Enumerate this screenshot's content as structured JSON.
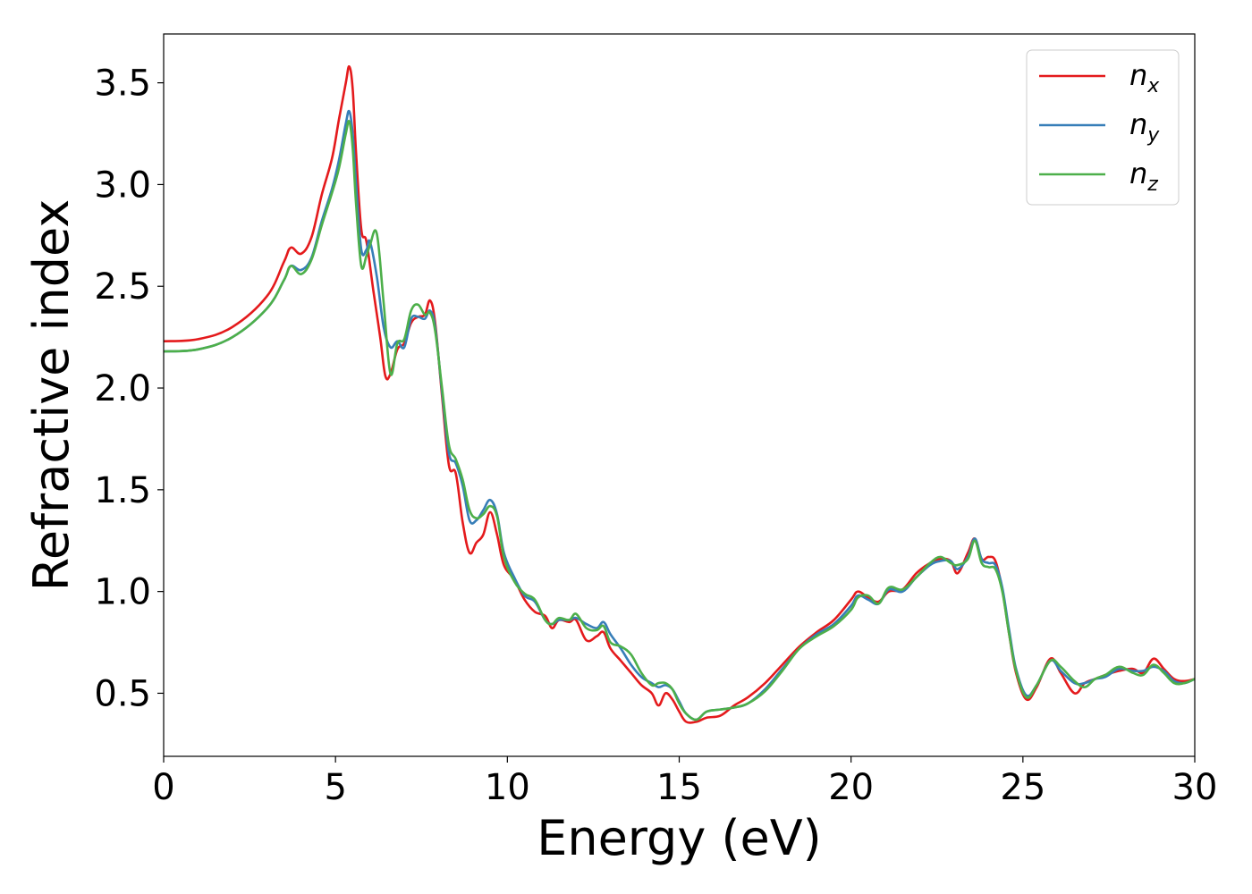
{
  "chart_data": {
    "type": "line",
    "xlabel": "Energy (eV)",
    "ylabel": "Refractive index",
    "xlim": [
      0,
      30
    ],
    "ylim": [
      0.19,
      3.74
    ],
    "xticks": [
      0,
      5,
      10,
      15,
      20,
      25,
      30
    ],
    "yticks": [
      0.5,
      1.0,
      1.5,
      2.0,
      2.5,
      3.0,
      3.5
    ],
    "xtick_labels": [
      "0",
      "5",
      "10",
      "15",
      "20",
      "25",
      "30"
    ],
    "ytick_labels": [
      "0.5",
      "1.0",
      "1.5",
      "2.0",
      "2.5",
      "3.0",
      "3.5"
    ],
    "grid": false,
    "legend_position": "top-right",
    "series": [
      {
        "name": "n_x",
        "label_base": "n",
        "label_sub": "x",
        "color": "#e41a1c",
        "points": [
          [
            0,
            2.23
          ],
          [
            1,
            2.24
          ],
          [
            2,
            2.3
          ],
          [
            3,
            2.45
          ],
          [
            3.5,
            2.62
          ],
          [
            3.7,
            2.69
          ],
          [
            4.0,
            2.66
          ],
          [
            4.3,
            2.74
          ],
          [
            4.6,
            2.95
          ],
          [
            4.9,
            3.13
          ],
          [
            5.1,
            3.32
          ],
          [
            5.3,
            3.5
          ],
          [
            5.4,
            3.58
          ],
          [
            5.5,
            3.47
          ],
          [
            5.6,
            3.15
          ],
          [
            5.75,
            2.78
          ],
          [
            5.9,
            2.72
          ],
          [
            6.1,
            2.48
          ],
          [
            6.3,
            2.25
          ],
          [
            6.45,
            2.06
          ],
          [
            6.6,
            2.07
          ],
          [
            6.8,
            2.19
          ],
          [
            7.0,
            2.22
          ],
          [
            7.2,
            2.32
          ],
          [
            7.4,
            2.35
          ],
          [
            7.6,
            2.36
          ],
          [
            7.75,
            2.43
          ],
          [
            7.9,
            2.32
          ],
          [
            8.1,
            1.96
          ],
          [
            8.3,
            1.62
          ],
          [
            8.5,
            1.58
          ],
          [
            8.7,
            1.34
          ],
          [
            8.9,
            1.19
          ],
          [
            9.1,
            1.24
          ],
          [
            9.3,
            1.28
          ],
          [
            9.5,
            1.39
          ],
          [
            9.7,
            1.28
          ],
          [
            9.9,
            1.13
          ],
          [
            10.2,
            1.06
          ],
          [
            10.5,
            0.96
          ],
          [
            10.8,
            0.9
          ],
          [
            11.1,
            0.88
          ],
          [
            11.3,
            0.82
          ],
          [
            11.5,
            0.86
          ],
          [
            11.8,
            0.85
          ],
          [
            12.0,
            0.86
          ],
          [
            12.3,
            0.76
          ],
          [
            12.6,
            0.78
          ],
          [
            12.8,
            0.8
          ],
          [
            13.0,
            0.72
          ],
          [
            13.3,
            0.66
          ],
          [
            13.6,
            0.6
          ],
          [
            13.9,
            0.54
          ],
          [
            14.2,
            0.5
          ],
          [
            14.4,
            0.44
          ],
          [
            14.6,
            0.5
          ],
          [
            14.8,
            0.47
          ],
          [
            15.0,
            0.41
          ],
          [
            15.2,
            0.36
          ],
          [
            15.5,
            0.36
          ],
          [
            15.8,
            0.38
          ],
          [
            16.2,
            0.39
          ],
          [
            16.6,
            0.44
          ],
          [
            17.0,
            0.48
          ],
          [
            17.5,
            0.55
          ],
          [
            18.0,
            0.64
          ],
          [
            18.5,
            0.73
          ],
          [
            19.0,
            0.8
          ],
          [
            19.5,
            0.86
          ],
          [
            20.0,
            0.96
          ],
          [
            20.2,
            1.0
          ],
          [
            20.5,
            0.97
          ],
          [
            20.8,
            0.95
          ],
          [
            21.1,
            1.0
          ],
          [
            21.5,
            1.01
          ],
          [
            21.9,
            1.09
          ],
          [
            22.3,
            1.14
          ],
          [
            22.6,
            1.16
          ],
          [
            22.9,
            1.15
          ],
          [
            23.1,
            1.09
          ],
          [
            23.4,
            1.19
          ],
          [
            23.6,
            1.26
          ],
          [
            23.8,
            1.16
          ],
          [
            24.0,
            1.17
          ],
          [
            24.2,
            1.15
          ],
          [
            24.4,
            1.01
          ],
          [
            24.6,
            0.79
          ],
          [
            24.8,
            0.6
          ],
          [
            25.1,
            0.47
          ],
          [
            25.4,
            0.53
          ],
          [
            25.8,
            0.67
          ],
          [
            26.1,
            0.6
          ],
          [
            26.5,
            0.5
          ],
          [
            26.8,
            0.55
          ],
          [
            27.1,
            0.57
          ],
          [
            27.4,
            0.59
          ],
          [
            27.8,
            0.61
          ],
          [
            28.2,
            0.62
          ],
          [
            28.5,
            0.6
          ],
          [
            28.8,
            0.67
          ],
          [
            29.1,
            0.62
          ],
          [
            29.4,
            0.57
          ],
          [
            29.7,
            0.56
          ],
          [
            30,
            0.57
          ]
        ]
      },
      {
        "name": "n_y",
        "label_base": "n",
        "label_sub": "y",
        "color": "#377eb8",
        "points": [
          [
            0,
            2.18
          ],
          [
            1,
            2.19
          ],
          [
            2,
            2.25
          ],
          [
            3,
            2.39
          ],
          [
            3.5,
            2.53
          ],
          [
            3.7,
            2.6
          ],
          [
            4.0,
            2.58
          ],
          [
            4.3,
            2.64
          ],
          [
            4.6,
            2.82
          ],
          [
            4.9,
            2.98
          ],
          [
            5.1,
            3.12
          ],
          [
            5.3,
            3.3
          ],
          [
            5.4,
            3.36
          ],
          [
            5.5,
            3.25
          ],
          [
            5.6,
            3.0
          ],
          [
            5.75,
            2.68
          ],
          [
            5.9,
            2.68
          ],
          [
            6.0,
            2.72
          ],
          [
            6.2,
            2.55
          ],
          [
            6.4,
            2.3
          ],
          [
            6.6,
            2.2
          ],
          [
            6.8,
            2.23
          ],
          [
            7.0,
            2.2
          ],
          [
            7.2,
            2.34
          ],
          [
            7.4,
            2.35
          ],
          [
            7.6,
            2.34
          ],
          [
            7.75,
            2.38
          ],
          [
            7.9,
            2.3
          ],
          [
            8.1,
            1.98
          ],
          [
            8.3,
            1.68
          ],
          [
            8.5,
            1.63
          ],
          [
            8.7,
            1.52
          ],
          [
            8.9,
            1.35
          ],
          [
            9.1,
            1.35
          ],
          [
            9.3,
            1.4
          ],
          [
            9.5,
            1.45
          ],
          [
            9.7,
            1.38
          ],
          [
            9.9,
            1.19
          ],
          [
            10.2,
            1.07
          ],
          [
            10.5,
            0.98
          ],
          [
            10.8,
            0.95
          ],
          [
            11.1,
            0.86
          ],
          [
            11.3,
            0.84
          ],
          [
            11.5,
            0.86
          ],
          [
            11.8,
            0.86
          ],
          [
            12.0,
            0.87
          ],
          [
            12.3,
            0.84
          ],
          [
            12.6,
            0.82
          ],
          [
            12.8,
            0.85
          ],
          [
            13.0,
            0.79
          ],
          [
            13.3,
            0.72
          ],
          [
            13.6,
            0.64
          ],
          [
            13.9,
            0.58
          ],
          [
            14.2,
            0.55
          ],
          [
            14.4,
            0.53
          ],
          [
            14.6,
            0.54
          ],
          [
            14.8,
            0.52
          ],
          [
            15.0,
            0.46
          ],
          [
            15.2,
            0.4
          ],
          [
            15.5,
            0.37
          ],
          [
            15.8,
            0.41
          ],
          [
            16.2,
            0.42
          ],
          [
            16.6,
            0.43
          ],
          [
            17.0,
            0.45
          ],
          [
            17.5,
            0.52
          ],
          [
            18.0,
            0.62
          ],
          [
            18.5,
            0.72
          ],
          [
            19.0,
            0.79
          ],
          [
            19.5,
            0.84
          ],
          [
            20.0,
            0.93
          ],
          [
            20.2,
            0.98
          ],
          [
            20.5,
            0.96
          ],
          [
            20.8,
            0.94
          ],
          [
            21.1,
            1.01
          ],
          [
            21.5,
            1.0
          ],
          [
            21.9,
            1.07
          ],
          [
            22.3,
            1.13
          ],
          [
            22.6,
            1.15
          ],
          [
            22.9,
            1.15
          ],
          [
            23.1,
            1.11
          ],
          [
            23.4,
            1.17
          ],
          [
            23.6,
            1.26
          ],
          [
            23.8,
            1.16
          ],
          [
            24.0,
            1.14
          ],
          [
            24.2,
            1.13
          ],
          [
            24.4,
            1.02
          ],
          [
            24.6,
            0.81
          ],
          [
            24.8,
            0.62
          ],
          [
            25.1,
            0.49
          ],
          [
            25.4,
            0.54
          ],
          [
            25.8,
            0.66
          ],
          [
            26.1,
            0.61
          ],
          [
            26.5,
            0.55
          ],
          [
            26.8,
            0.55
          ],
          [
            27.1,
            0.57
          ],
          [
            27.4,
            0.58
          ],
          [
            27.8,
            0.62
          ],
          [
            28.2,
            0.61
          ],
          [
            28.5,
            0.61
          ],
          [
            28.8,
            0.63
          ],
          [
            29.1,
            0.61
          ],
          [
            29.4,
            0.56
          ],
          [
            29.7,
            0.55
          ],
          [
            30,
            0.57
          ]
        ]
      },
      {
        "name": "n_z",
        "label_base": "n",
        "label_sub": "z",
        "color": "#4daf4a",
        "points": [
          [
            0,
            2.18
          ],
          [
            1,
            2.19
          ],
          [
            2,
            2.25
          ],
          [
            3,
            2.39
          ],
          [
            3.5,
            2.53
          ],
          [
            3.7,
            2.6
          ],
          [
            4.0,
            2.56
          ],
          [
            4.3,
            2.63
          ],
          [
            4.6,
            2.8
          ],
          [
            4.9,
            2.96
          ],
          [
            5.1,
            3.08
          ],
          [
            5.3,
            3.25
          ],
          [
            5.4,
            3.31
          ],
          [
            5.5,
            3.18
          ],
          [
            5.6,
            2.9
          ],
          [
            5.75,
            2.6
          ],
          [
            5.9,
            2.65
          ],
          [
            6.0,
            2.7
          ],
          [
            6.2,
            2.76
          ],
          [
            6.4,
            2.42
          ],
          [
            6.6,
            2.07
          ],
          [
            6.8,
            2.22
          ],
          [
            7.0,
            2.24
          ],
          [
            7.2,
            2.38
          ],
          [
            7.4,
            2.41
          ],
          [
            7.6,
            2.36
          ],
          [
            7.75,
            2.37
          ],
          [
            7.9,
            2.28
          ],
          [
            8.1,
            2.0
          ],
          [
            8.3,
            1.72
          ],
          [
            8.5,
            1.65
          ],
          [
            8.7,
            1.55
          ],
          [
            8.9,
            1.4
          ],
          [
            9.1,
            1.36
          ],
          [
            9.3,
            1.38
          ],
          [
            9.5,
            1.42
          ],
          [
            9.7,
            1.37
          ],
          [
            9.9,
            1.17
          ],
          [
            10.2,
            1.05
          ],
          [
            10.5,
            0.99
          ],
          [
            10.8,
            0.96
          ],
          [
            11.1,
            0.86
          ],
          [
            11.3,
            0.84
          ],
          [
            11.5,
            0.87
          ],
          [
            11.8,
            0.86
          ],
          [
            12.0,
            0.89
          ],
          [
            12.3,
            0.82
          ],
          [
            12.6,
            0.81
          ],
          [
            12.8,
            0.83
          ],
          [
            13.0,
            0.75
          ],
          [
            13.3,
            0.73
          ],
          [
            13.6,
            0.69
          ],
          [
            13.9,
            0.6
          ],
          [
            14.2,
            0.54
          ],
          [
            14.4,
            0.55
          ],
          [
            14.6,
            0.55
          ],
          [
            14.8,
            0.52
          ],
          [
            15.0,
            0.45
          ],
          [
            15.2,
            0.4
          ],
          [
            15.5,
            0.37
          ],
          [
            15.8,
            0.41
          ],
          [
            16.2,
            0.42
          ],
          [
            16.6,
            0.43
          ],
          [
            17.0,
            0.45
          ],
          [
            17.5,
            0.51
          ],
          [
            18.0,
            0.61
          ],
          [
            18.5,
            0.72
          ],
          [
            19.0,
            0.78
          ],
          [
            19.5,
            0.83
          ],
          [
            20.0,
            0.91
          ],
          [
            20.2,
            0.97
          ],
          [
            20.5,
            0.98
          ],
          [
            20.8,
            0.94
          ],
          [
            21.1,
            1.02
          ],
          [
            21.5,
            1.01
          ],
          [
            21.9,
            1.07
          ],
          [
            22.3,
            1.14
          ],
          [
            22.6,
            1.17
          ],
          [
            22.9,
            1.14
          ],
          [
            23.1,
            1.13
          ],
          [
            23.4,
            1.16
          ],
          [
            23.6,
            1.25
          ],
          [
            23.8,
            1.14
          ],
          [
            24.0,
            1.12
          ],
          [
            24.2,
            1.11
          ],
          [
            24.4,
            1.0
          ],
          [
            24.6,
            0.79
          ],
          [
            24.8,
            0.61
          ],
          [
            25.1,
            0.48
          ],
          [
            25.4,
            0.54
          ],
          [
            25.8,
            0.66
          ],
          [
            26.1,
            0.63
          ],
          [
            26.5,
            0.56
          ],
          [
            26.8,
            0.53
          ],
          [
            27.1,
            0.57
          ],
          [
            27.4,
            0.59
          ],
          [
            27.8,
            0.63
          ],
          [
            28.2,
            0.6
          ],
          [
            28.5,
            0.59
          ],
          [
            28.8,
            0.64
          ],
          [
            29.1,
            0.6
          ],
          [
            29.4,
            0.55
          ],
          [
            29.7,
            0.55
          ],
          [
            30,
            0.57
          ]
        ]
      }
    ]
  }
}
